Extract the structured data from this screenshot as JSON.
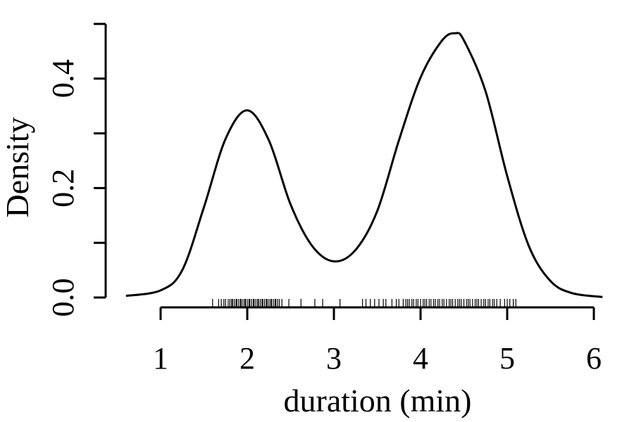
{
  "chart_data": {
    "type": "line",
    "title": "",
    "xlabel": "duration (min)",
    "ylabel": "Density",
    "xlim": [
      1,
      6
    ],
    "ylim": [
      0,
      0.5
    ],
    "x_ticks": [
      1,
      2,
      3,
      4,
      5,
      6
    ],
    "x_tick_labels": [
      "1",
      "2",
      "3",
      "4",
      "5",
      "6"
    ],
    "y_ticks": [
      0,
      0.1,
      0.2,
      0.3,
      0.4,
      0.5
    ],
    "y_tick_labels": [
      "0.0",
      "",
      "0.2",
      "",
      "0.4",
      ""
    ],
    "grid": false,
    "line_color": "#000000",
    "density_curve": {
      "x": [
        0.6,
        1.0,
        1.25,
        1.5,
        1.75,
        2.0,
        2.25,
        2.5,
        2.75,
        3.0,
        3.25,
        3.5,
        3.75,
        4.0,
        4.25,
        4.4,
        4.5,
        4.75,
        5.0,
        5.25,
        5.5,
        5.75,
        6.1
      ],
      "y": [
        0.003,
        0.013,
        0.05,
        0.165,
        0.29,
        0.342,
        0.287,
        0.17,
        0.094,
        0.066,
        0.087,
        0.158,
        0.287,
        0.402,
        0.47,
        0.483,
        0.47,
        0.377,
        0.222,
        0.094,
        0.03,
        0.008,
        0.001
      ]
    },
    "rug": [
      1.6,
      1.67,
      1.7,
      1.73,
      1.75,
      1.78,
      1.8,
      1.82,
      1.83,
      1.85,
      1.87,
      1.88,
      1.9,
      1.92,
      1.93,
      1.95,
      1.97,
      1.98,
      2.0,
      2.02,
      2.03,
      2.05,
      2.07,
      2.08,
      2.1,
      2.12,
      2.13,
      2.15,
      2.17,
      2.18,
      2.2,
      2.22,
      2.23,
      2.25,
      2.27,
      2.28,
      2.3,
      2.32,
      2.33,
      2.35,
      2.37,
      2.4,
      2.48,
      2.62,
      2.78,
      2.87,
      3.07,
      3.33,
      3.37,
      3.42,
      3.47,
      3.52,
      3.57,
      3.6,
      3.67,
      3.72,
      3.75,
      3.8,
      3.83,
      3.85,
      3.87,
      3.9,
      3.92,
      3.95,
      3.97,
      4.0,
      4.03,
      4.05,
      4.07,
      4.1,
      4.12,
      4.15,
      4.17,
      4.2,
      4.22,
      4.25,
      4.27,
      4.3,
      4.33,
      4.35,
      4.37,
      4.4,
      4.43,
      4.45,
      4.47,
      4.5,
      4.53,
      4.55,
      4.57,
      4.6,
      4.63,
      4.65,
      4.67,
      4.7,
      4.73,
      4.75,
      4.78,
      4.8,
      4.83,
      4.85,
      4.88,
      4.92,
      4.97,
      5.0,
      5.03,
      5.07,
      5.1
    ]
  }
}
